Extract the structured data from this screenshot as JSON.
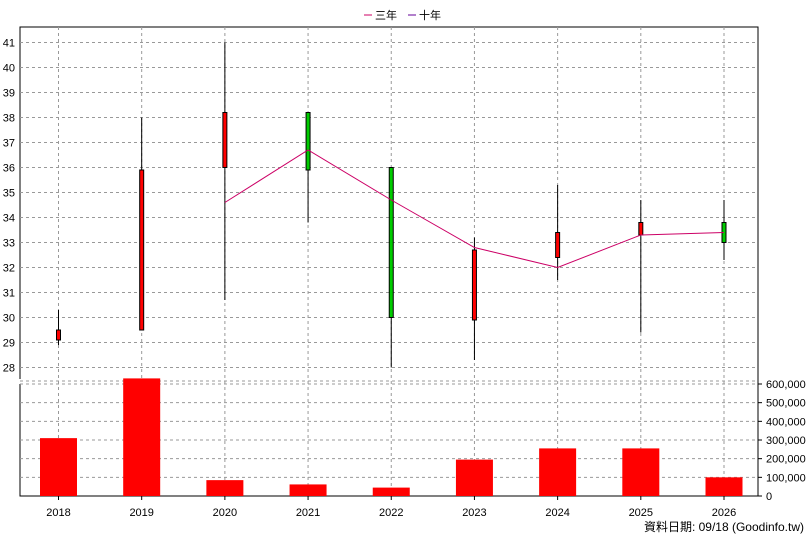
{
  "chart_data": {
    "type": "candlestick+bar",
    "legend": [
      {
        "name": "三年",
        "color": "#cc0066"
      },
      {
        "name": "十年",
        "color": "#660099"
      }
    ],
    "categories": [
      "2018",
      "2019",
      "2020",
      "2021",
      "2022",
      "2023",
      "2024",
      "2025",
      "2026"
    ],
    "candles": [
      {
        "open": 29.1,
        "close": 29.5,
        "high": 30.3,
        "low": 28.9,
        "color": "#ff0000"
      },
      {
        "open": 29.5,
        "close": 35.9,
        "high": 38.0,
        "low": 29.5,
        "color": "#ff0000"
      },
      {
        "open": 36.0,
        "close": 38.2,
        "high": 41.0,
        "low": 30.7,
        "color": "#ff0000"
      },
      {
        "open": 38.2,
        "close": 35.9,
        "high": 38.2,
        "low": 33.8,
        "color": "#00cc00"
      },
      {
        "open": 36.0,
        "close": 30.0,
        "high": 36.0,
        "low": 28.0,
        "color": "#00cc00"
      },
      {
        "open": 29.9,
        "close": 32.7,
        "high": 33.2,
        "low": 28.3,
        "color": "#ff0000"
      },
      {
        "open": 32.4,
        "close": 33.4,
        "high": 35.3,
        "low": 31.5,
        "color": "#ff0000"
      },
      {
        "open": 33.3,
        "close": 33.8,
        "high": 34.7,
        "low": 29.4,
        "color": "#ff0000"
      },
      {
        "open": 33.8,
        "close": 33.0,
        "high": 34.7,
        "low": 32.3,
        "color": "#00cc00"
      }
    ],
    "three_year_line": [
      null,
      null,
      34.6,
      36.7,
      34.7,
      32.8,
      32.0,
      33.3,
      33.4
    ],
    "price_axis": {
      "min": 28,
      "max": 41,
      "ticks": [
        28,
        29,
        30,
        31,
        32,
        33,
        34,
        35,
        36,
        37,
        38,
        39,
        40,
        41
      ]
    },
    "volume": [
      310000,
      630000,
      85000,
      62000,
      45000,
      195000,
      255000,
      255000,
      100000
    ],
    "volume_color": "#ff0000",
    "volume_axis": {
      "min": 0,
      "max": 600000,
      "ticks": [
        0,
        100000,
        200000,
        300000,
        400000,
        500000,
        600000
      ],
      "tick_labels": [
        "0",
        "100,000",
        "200,000",
        "300,000",
        "400,000",
        "500,000",
        "600,000"
      ]
    }
  },
  "footer": {
    "source": "資料日期: 09/18 (Goodinfo.tw)"
  }
}
